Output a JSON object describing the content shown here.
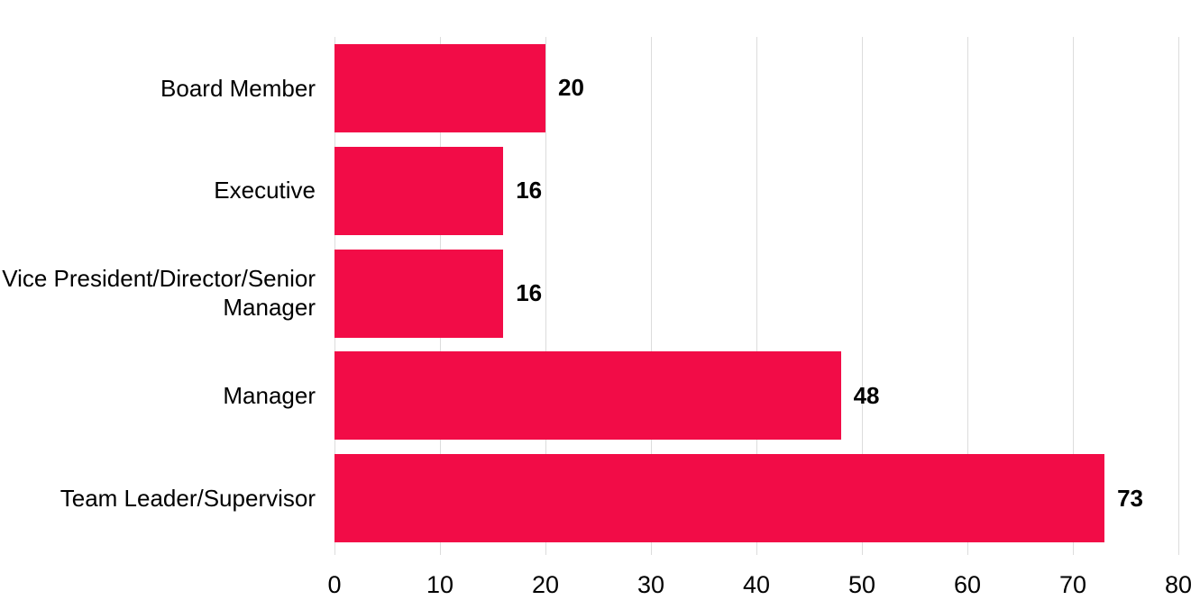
{
  "chart_data": {
    "type": "bar",
    "orientation": "horizontal",
    "title": "",
    "xlabel": "",
    "ylabel": "",
    "categories": [
      "Board Member",
      "Executive",
      "Vice President/Director/Senior Manager",
      "Manager",
      "Team Leader/Supervisor"
    ],
    "values": [
      20,
      16,
      16,
      48,
      73
    ],
    "value_labels": [
      "20",
      "16",
      "16",
      "48",
      "73"
    ],
    "xlim": [
      0,
      80
    ],
    "xticks": [
      0,
      10,
      20,
      30,
      40,
      50,
      60,
      70,
      80
    ],
    "grid": "vertical",
    "legend_position": "none",
    "bar_color": "#F20C47",
    "gridline_color": "#DCDCDC",
    "text_color": "#000000",
    "background_color": "#FFFFFF"
  }
}
